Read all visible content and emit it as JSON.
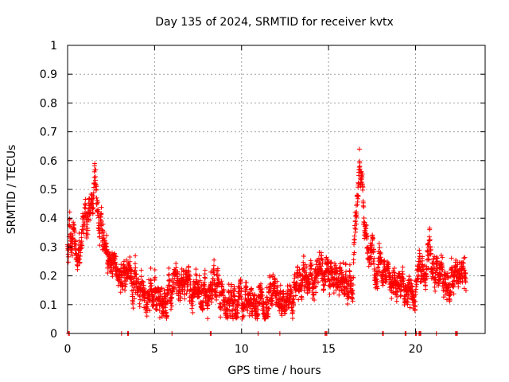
{
  "chart_data": {
    "type": "scatter",
    "title": "Day 135 of 2024, SRMTID for receiver kvtx",
    "xlabel": "GPS time / hours",
    "ylabel": "SRMTID / TECUs",
    "xlim": [
      0,
      24
    ],
    "ylim": [
      0,
      1
    ],
    "xticks": [
      0,
      5,
      10,
      15,
      20
    ],
    "yticks": [
      0,
      0.1,
      0.2,
      0.3,
      0.4,
      0.5,
      0.6,
      0.7,
      0.8,
      0.9,
      1
    ],
    "grid": true,
    "marker": "+",
    "color": "#ff0000",
    "points_per_hour": 120,
    "anchor_hours": [
      0,
      0.3,
      0.6,
      0.9,
      1.2,
      1.5,
      1.8,
      2.0,
      2.3,
      2.7,
      3.0,
      3.5,
      4.0,
      4.5,
      5.0,
      5.5,
      6.0,
      6.5,
      7.0,
      7.5,
      8.0,
      8.5,
      9.0,
      9.5,
      10.0,
      10.5,
      11.0,
      11.5,
      12.0,
      12.5,
      13.0,
      13.5,
      14.0,
      14.5,
      15.0,
      15.5,
      16.0,
      16.4,
      16.6,
      16.8,
      17.0,
      17.2,
      17.5,
      18.0,
      18.5,
      19.0,
      19.5,
      20.0,
      20.2,
      20.5,
      20.8,
      21.0,
      21.5,
      22.0,
      22.3,
      22.6,
      22.8
    ],
    "anchor_values": [
      0.32,
      0.34,
      0.28,
      0.35,
      0.42,
      0.5,
      0.44,
      0.35,
      0.25,
      0.22,
      0.2,
      0.2,
      0.17,
      0.14,
      0.13,
      0.15,
      0.17,
      0.19,
      0.17,
      0.14,
      0.12,
      0.15,
      0.13,
      0.11,
      0.1,
      0.11,
      0.1,
      0.12,
      0.14,
      0.13,
      0.15,
      0.17,
      0.19,
      0.21,
      0.2,
      0.19,
      0.18,
      0.2,
      0.4,
      0.6,
      0.45,
      0.3,
      0.25,
      0.22,
      0.18,
      0.17,
      0.16,
      0.17,
      0.2,
      0.24,
      0.26,
      0.22,
      0.2,
      0.2,
      0.18,
      0.2,
      0.19
    ],
    "spread": 0.06,
    "data_start_hour": 0,
    "data_end_hour": 22.9,
    "baseline_marker_hours": [
      0.05,
      0.1,
      3.1,
      3.45,
      3.5,
      6.0,
      8.2,
      8.25,
      10.95,
      12.2,
      14.8,
      14.85,
      14.9,
      18.1,
      18.15,
      19.4,
      19.45,
      20.0,
      20.05,
      20.2,
      20.25,
      20.3,
      21.2,
      22.3,
      22.35,
      22.4
    ]
  }
}
